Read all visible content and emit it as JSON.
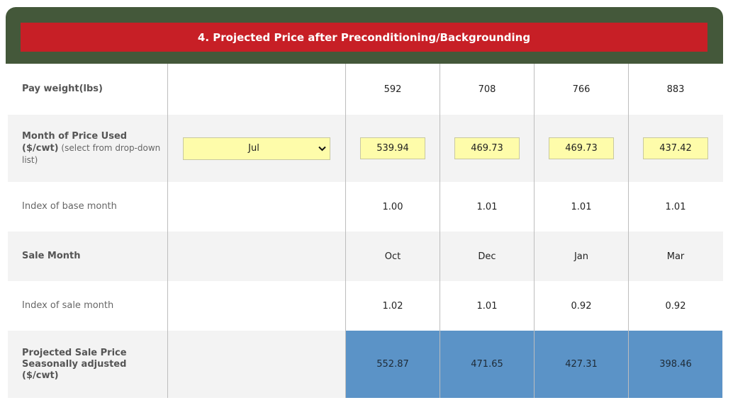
{
  "header": {
    "title": "4. Projected Price after Preconditioning/Backgrounding",
    "colors": {
      "header_bg": "#44583a",
      "title_bg": "#c71f26",
      "input_bg": "#fefcaa",
      "result_bg": "#5b93c7"
    }
  },
  "rows": {
    "pay_weight": {
      "label": "Pay weight(lbs)",
      "values": [
        "592",
        "708",
        "766",
        "883"
      ]
    },
    "month_price": {
      "label_bold": "Month of Price Used",
      "label_bold2": "($/cwt)",
      "label_note": " (select from drop-down list)",
      "selected_month": "Jul",
      "values": [
        "539.94",
        "469.73",
        "469.73",
        "437.42"
      ]
    },
    "index_base": {
      "label": "Index of base month",
      "values": [
        "1.00",
        "1.01",
        "1.01",
        "1.01"
      ]
    },
    "sale_month": {
      "label": "Sale Month",
      "values": [
        "Oct",
        "Dec",
        "Jan",
        "Mar"
      ]
    },
    "index_sale": {
      "label": "Index of sale month",
      "values": [
        "1.02",
        "1.01",
        "0.92",
        "0.92"
      ]
    },
    "projected": {
      "label": "Projected Sale Price Seasonally adjusted ($/cwt)",
      "values": [
        "552.87",
        "471.65",
        "427.31",
        "398.46"
      ]
    }
  }
}
